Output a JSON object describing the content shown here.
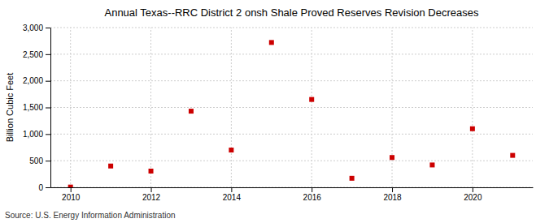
{
  "chart_data": {
    "type": "scatter",
    "title": "Annual Texas--RRC District 2 onsh Shale Proved Reserves Revision Decreases",
    "ylabel": "Billion Cubic Feet",
    "annotations": [
      "Source: U.S. Energy Information Administration"
    ],
    "x": [
      2010,
      2011,
      2012,
      2013,
      2014,
      2015,
      2016,
      2017,
      2018,
      2019,
      2020,
      2021
    ],
    "values": [
      5,
      400,
      305,
      1430,
      700,
      2720,
      1650,
      170,
      560,
      420,
      1100,
      600
    ],
    "color": "#cc0000",
    "marker": "square",
    "xlim": [
      2009.5,
      2021.5
    ],
    "xticks": [
      2010,
      2012,
      2014,
      2016,
      2018,
      2020
    ],
    "ylim": [
      0,
      3000
    ],
    "yticks": [
      0,
      500,
      {
        "value": 1000,
        "label": "1,000"
      },
      {
        "value": 1500,
        "label": "1,500"
      },
      {
        "value": 2000,
        "label": "2,000"
      },
      {
        "value": 2500,
        "label": "2,500"
      },
      {
        "value": 3000,
        "label": "3,000"
      }
    ],
    "grid": true
  }
}
